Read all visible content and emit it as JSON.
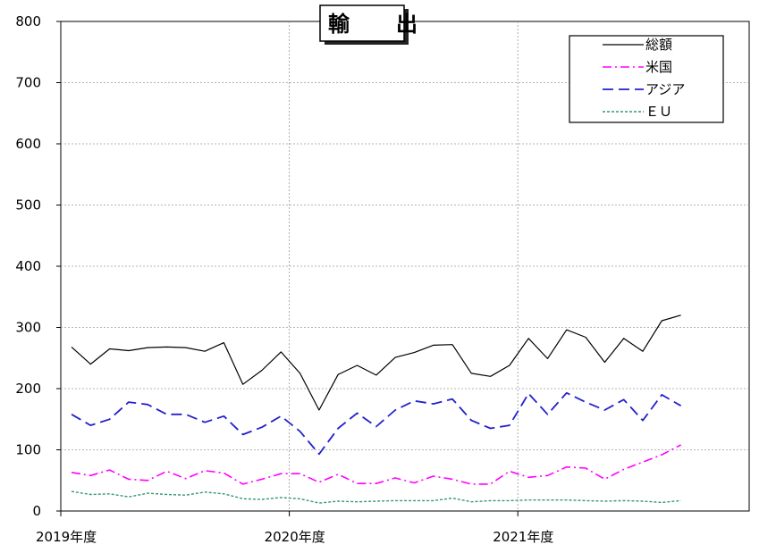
{
  "chart_data": {
    "type": "line",
    "title": "輸　出",
    "xlabel": "",
    "ylabel": "",
    "ylim": [
      0,
      800
    ],
    "yticks": [
      0,
      100,
      200,
      300,
      400,
      500,
      600,
      700,
      800
    ],
    "year_labels": [
      "2019年度",
      "2020年度",
      "2021年度"
    ],
    "months_per_year": 12,
    "grid": true,
    "legend_position": "top-right",
    "series": [
      {
        "name": "総額",
        "color": "#000000",
        "dash": "solid",
        "values": [
          268,
          240,
          265,
          262,
          267,
          268,
          267,
          261,
          275,
          207,
          230,
          260,
          225,
          165,
          223,
          238,
          222,
          251,
          259,
          271,
          272,
          225,
          220,
          238,
          282,
          249,
          296,
          284,
          243,
          282,
          261,
          311,
          320
        ]
      },
      {
        "name": "米国",
        "color": "#ff00ff",
        "dash": "dashdot",
        "values": [
          63,
          58,
          67,
          52,
          50,
          65,
          53,
          66,
          62,
          44,
          52,
          61,
          61,
          47,
          60,
          45,
          45,
          54,
          46,
          57,
          52,
          44,
          44,
          65,
          55,
          58,
          72,
          70,
          52,
          68,
          80,
          92,
          108
        ]
      },
      {
        "name": "アジア",
        "color": "#2222cc",
        "dash": "dashed",
        "values": [
          158,
          140,
          150,
          178,
          174,
          158,
          158,
          145,
          155,
          125,
          137,
          155,
          130,
          93,
          135,
          160,
          138,
          165,
          180,
          175,
          183,
          148,
          135,
          140,
          192,
          158,
          193,
          178,
          165,
          182,
          148,
          190,
          172
        ]
      },
      {
        "name": "ＥＵ",
        "color": "#339977",
        "dash": "dotted",
        "values": [
          32,
          27,
          28,
          23,
          29,
          27,
          26,
          31,
          28,
          20,
          19,
          22,
          20,
          13,
          16,
          15,
          16,
          17,
          17,
          17,
          21,
          15,
          17,
          17,
          18,
          18,
          18,
          17,
          16,
          17,
          16,
          14,
          17
        ]
      }
    ]
  }
}
